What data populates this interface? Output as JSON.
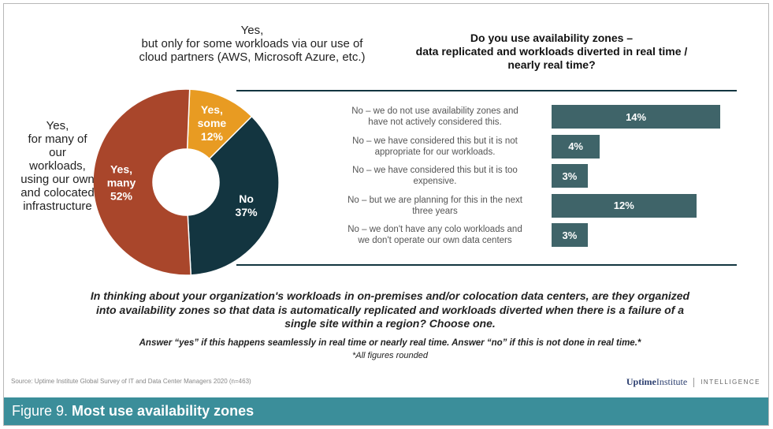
{
  "chart_data": [
    {
      "type": "pie",
      "style": "donut",
      "slices": [
        {
          "name": "Yes, some",
          "value": 12,
          "label": "Yes, some",
          "pct": "12%",
          "color": "#e89b22"
        },
        {
          "name": "No",
          "value": 37,
          "label": "No",
          "pct": "37%",
          "color": "#133540"
        },
        {
          "name": "Yes, many",
          "value": 52,
          "label": "Yes, many",
          "pct": "52%",
          "color": "#a9462b"
        }
      ],
      "callouts": {
        "some": [
          "Yes,",
          "but only for some workloads via our use of",
          "cloud partners (AWS, Microsoft Azure, etc.)"
        ],
        "many": [
          "Yes,",
          "for many of",
          "our",
          "workloads,",
          "using our own",
          "and colocated",
          "infrastructure"
        ]
      }
    },
    {
      "type": "bar",
      "orientation": "horizontal",
      "title": [
        "Do you use availability zones –",
        "data replicated and workloads diverted in real time /",
        "nearly real time?"
      ],
      "categories": [
        [
          "No – we do not use availability zones and",
          "have not actively considered this."
        ],
        [
          "No – we have considered this but it is not",
          "appropriate for our workloads."
        ],
        [
          "No – we have considered this but it is too",
          "expensive."
        ],
        [
          "No – but we are planning for this in the next",
          "three years"
        ],
        [
          "No – we don't have any colo workloads and",
          "we don't operate our own data centers"
        ]
      ],
      "values": [
        14,
        4,
        3,
        12,
        3
      ],
      "value_labels": [
        "14%",
        "4%",
        "3%",
        "12%",
        "3%"
      ],
      "color": "#3f6469"
    }
  ],
  "question": [
    "In thinking about your organization's workloads in on-premises and/or colocation data centers, are they organized",
    "into availability zones so that data is automatically replicated and workloads diverted when there is a failure of a",
    "single site within a region? Choose one."
  ],
  "note": "Answer “yes” if this happens seamlessly in real time or nearly real time. Answer “no” if this is not done in real time.*",
  "note2": "*All figures rounded",
  "source": "Source: Uptime Institute Global Survey of IT and Data Center Managers 2020 (n=463)",
  "brand": {
    "part1": "Uptime",
    "part2": "Institute",
    "part3": "INTELLIGENCE"
  },
  "footer": {
    "prefix": "Figure 9.",
    "title": "Most use availability zones"
  }
}
